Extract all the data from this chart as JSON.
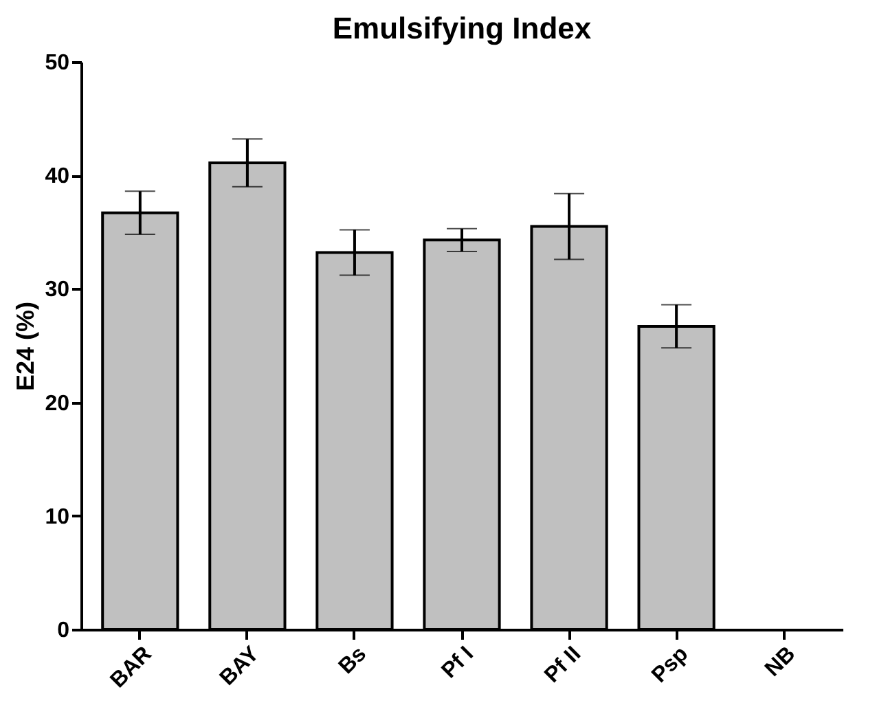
{
  "chart_data": {
    "type": "bar",
    "title": "Emulsifying Index",
    "ylabel": "E24 (%)",
    "categories": [
      "BAR",
      "BAY",
      "Bs",
      "Pf I",
      "Pf II",
      "Psp",
      "NB"
    ],
    "values": [
      36.7,
      41.1,
      33.2,
      34.3,
      35.5,
      26.7,
      null
    ],
    "errors": [
      1.9,
      2.1,
      2.0,
      1.0,
      2.9,
      1.9,
      null
    ],
    "color": "#c0c0c0",
    "ylim": [
      0,
      50
    ],
    "yticks": [
      0,
      10,
      20,
      30,
      40,
      50
    ],
    "grid": false
  }
}
